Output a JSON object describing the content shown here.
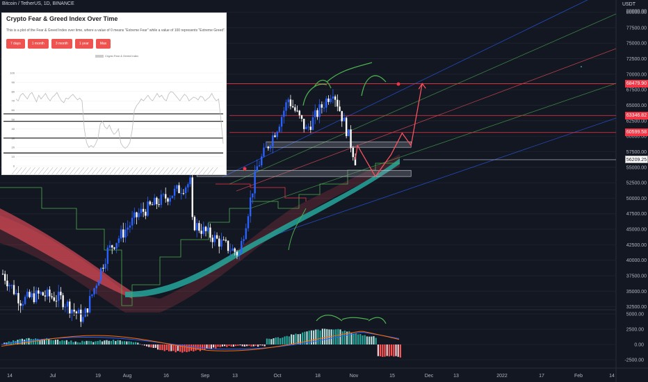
{
  "header": {
    "title": "Bitcoin / TetherUS, 1D, BINANCE",
    "currency": "USDT"
  },
  "colors": {
    "background": "#131722",
    "bull": "#2962ff",
    "bear": "#ffffff",
    "resistance": "#f23645",
    "support": "#26a69a",
    "projection": "#f7525f",
    "divergence": "#4caf50"
  },
  "panel": {
    "title": "Crypto Fear & Greed Index Over Time",
    "description": "This is a plot of the Fear & Greed Index over time, where a value of 0 means \"Extreme Fear\" while a value of 100 represents \"Extreme Greed\".",
    "buttons": [
      "7 days",
      "1 month",
      "3 month",
      "1 year",
      "Max"
    ],
    "legend": "Crypto Fear & Greed Index",
    "y_ticks": [
      "100",
      "90",
      "80",
      "70",
      "60",
      "50",
      "40",
      "30",
      "20",
      "10",
      "0"
    ]
  },
  "price_axis": {
    "ticks": [
      "80000.00",
      "77500.00",
      "75000.00",
      "72500.00",
      "70000.00",
      "67500.00",
      "65000.00",
      "62500.00",
      "60000.00",
      "57500.00",
      "55000.00",
      "52500.00",
      "50000.00",
      "47500.00",
      "45000.00",
      "42500.00",
      "40000.00",
      "37500.00",
      "35000.00",
      "32500.00"
    ],
    "tags": [
      {
        "label": "68479.90",
        "style": "red"
      },
      {
        "label": "63346.82",
        "style": "red"
      },
      {
        "label": "60599.58",
        "style": "red"
      },
      {
        "label": "56209.25",
        "style": "white"
      }
    ]
  },
  "macd_axis": {
    "ticks": [
      "5000.00",
      "2500.00",
      "0.00",
      "-2500.00"
    ]
  },
  "time_axis": {
    "ticks": [
      "14",
      "Jul",
      "19",
      "Aug",
      "16",
      "Sep",
      "13",
      "Oct",
      "18",
      "Nov",
      "15",
      "Dec",
      "13",
      "2022",
      "17",
      "Feb",
      "14"
    ]
  },
  "chart_data": {
    "type": "candlestick",
    "title": "Bitcoin / TetherUS, 1D, BINANCE",
    "ylim": [
      31000,
      81000
    ],
    "horizontal_levels": [
      68479.9,
      63346.82,
      60599.58,
      56209.25
    ],
    "support_zones": [
      [
        58200,
        59100
      ],
      [
        53500,
        54500
      ]
    ],
    "close_path": [
      {
        "x": "2021-06-14",
        "y": 37800
      },
      {
        "x": "2021-06-22",
        "y": 33500
      },
      {
        "x": "2021-07-01",
        "y": 34500
      },
      {
        "x": "2021-07-10",
        "y": 33800
      },
      {
        "x": "2021-07-20",
        "y": 30500
      },
      {
        "x": "2021-07-31",
        "y": 41500
      },
      {
        "x": "2021-08-14",
        "y": 47500
      },
      {
        "x": "2021-08-23",
        "y": 49500
      },
      {
        "x": "2021-09-06",
        "y": 52500
      },
      {
        "x": "2021-09-07",
        "y": 46000
      },
      {
        "x": "2021-09-21",
        "y": 42500
      },
      {
        "x": "2021-09-28",
        "y": 41000
      },
      {
        "x": "2021-10-06",
        "y": 55000
      },
      {
        "x": "2021-10-15",
        "y": 61500
      },
      {
        "x": "2021-10-20",
        "y": 66000
      },
      {
        "x": "2021-10-28",
        "y": 61000
      },
      {
        "x": "2021-11-09",
        "y": 67500
      },
      {
        "x": "2021-11-16",
        "y": 60000
      },
      {
        "x": "2021-11-19",
        "y": 56209
      }
    ],
    "projection": [
      {
        "x": "2021-11-20",
        "y": 58500
      },
      {
        "x": "2021-11-28",
        "y": 53500
      },
      {
        "x": "2021-12-05",
        "y": 57000
      },
      {
        "x": "2021-12-10",
        "y": 60500
      },
      {
        "x": "2021-12-14",
        "y": 58500
      },
      {
        "x": "2021-12-19",
        "y": 68500
      }
    ],
    "fear_greed_index": [
      72,
      70,
      76,
      78,
      75,
      72,
      77,
      79,
      74,
      69,
      76,
      72,
      75,
      78,
      73,
      70,
      74,
      76,
      79,
      74,
      70,
      68,
      73,
      72,
      75,
      77,
      74,
      71,
      73,
      70,
      40,
      25,
      20,
      22,
      20,
      24,
      30,
      45,
      48,
      42,
      40,
      44,
      38,
      34,
      36,
      40,
      25,
      21,
      19,
      21,
      25,
      38,
      60,
      65,
      68,
      72,
      70,
      73,
      76,
      72,
      70,
      74,
      78,
      74,
      76,
      72,
      70,
      77,
      80,
      79,
      76,
      73,
      70,
      74,
      77,
      75,
      70,
      72,
      74,
      73,
      71,
      75,
      74,
      70,
      72,
      74,
      78,
      73,
      70,
      72,
      50,
      24
    ]
  }
}
